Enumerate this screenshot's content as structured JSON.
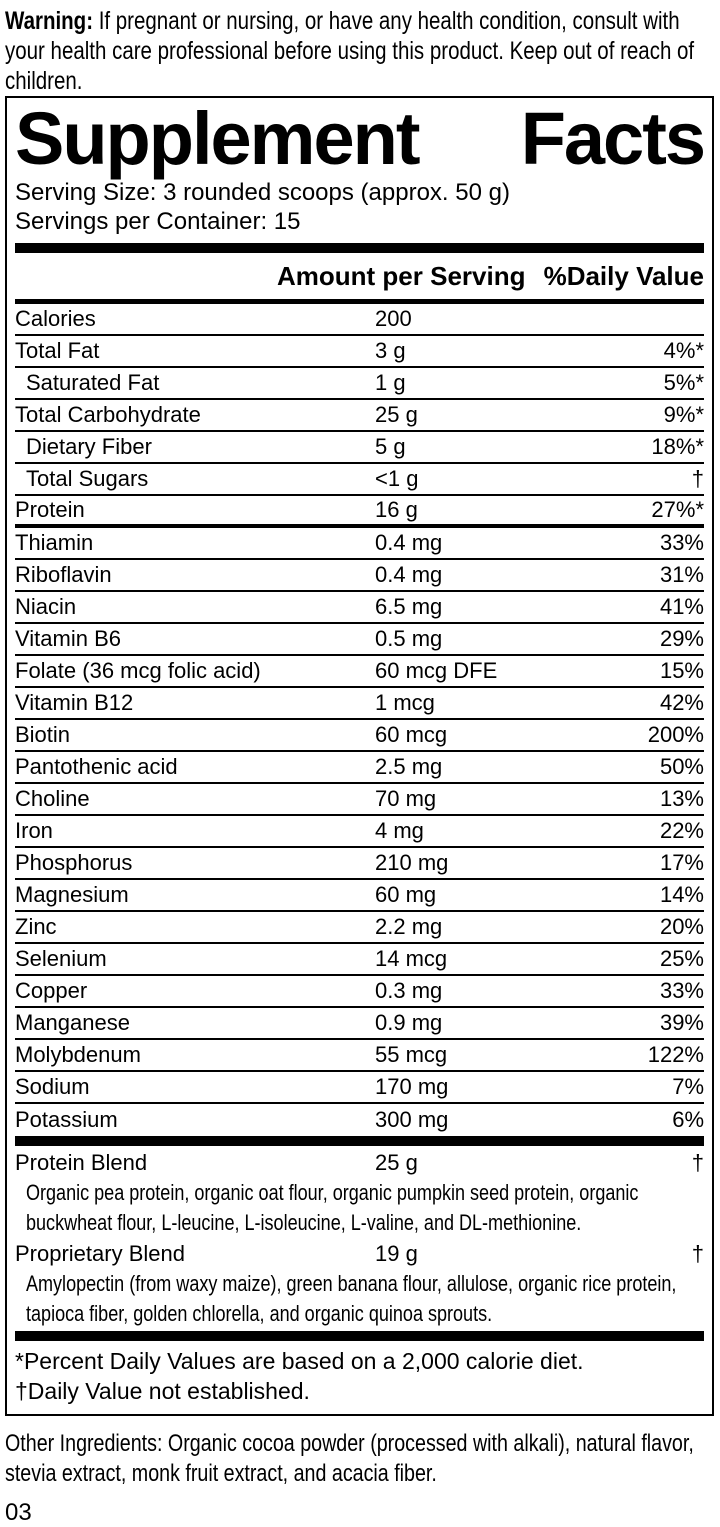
{
  "warning": {
    "label": "Warning:",
    "text": " If pregnant or nursing, or have any health condition, consult with your health care professional before using this product. Keep out of reach of children."
  },
  "panel": {
    "title": {
      "left": "Supplement",
      "right": "Facts"
    },
    "serving_size": "Serving Size: 3 rounded scoops (approx. 50 g)",
    "servings_per_container": "Servings per Container: 15",
    "columns": {
      "amount_header": "Amount per Serving",
      "dv_header": "%Daily Value"
    },
    "rows": [
      {
        "name": "Calories",
        "amount": "200",
        "dv": "",
        "indent": false
      },
      {
        "name": "Total Fat",
        "amount": "3 g",
        "dv": "4%*",
        "indent": false
      },
      {
        "name": "Saturated Fat",
        "amount": "1 g",
        "dv": "5%*",
        "indent": true
      },
      {
        "name": "Total Carbohydrate",
        "amount": "25 g",
        "dv": "9%*",
        "indent": false
      },
      {
        "name": "Dietary Fiber",
        "amount": "5 g",
        "dv": "18%*",
        "indent": true
      },
      {
        "name": "Total Sugars",
        "amount": "<1 g",
        "dv": "†",
        "indent": true
      },
      {
        "name": "Protein",
        "amount": "16 g",
        "dv": "27%*",
        "indent": false
      },
      {
        "name": "Thiamin",
        "amount": "0.4 mg",
        "dv": "33%",
        "indent": false
      },
      {
        "name": "Riboflavin",
        "amount": "0.4 mg",
        "dv": "31%",
        "indent": false
      },
      {
        "name": "Niacin",
        "amount": "6.5 mg",
        "dv": "41%",
        "indent": false
      },
      {
        "name": "Vitamin B6",
        "amount": "0.5 mg",
        "dv": "29%",
        "indent": false
      },
      {
        "name": "Folate (36 mcg folic acid)",
        "amount": "60 mcg DFE",
        "dv": "15%",
        "indent": false
      },
      {
        "name": "Vitamin B12",
        "amount": "1 mcg",
        "dv": "42%",
        "indent": false
      },
      {
        "name": "Biotin",
        "amount": "60 mcg",
        "dv": "200%",
        "indent": false
      },
      {
        "name": "Pantothenic acid",
        "amount": "2.5 mg",
        "dv": "50%",
        "indent": false
      },
      {
        "name": "Choline",
        "amount": "70 mg",
        "dv": "13%",
        "indent": false
      },
      {
        "name": "Iron",
        "amount": "4 mg",
        "dv": "22%",
        "indent": false
      },
      {
        "name": "Phosphorus",
        "amount": "210 mg",
        "dv": "17%",
        "indent": false
      },
      {
        "name": "Magnesium",
        "amount": "60 mg",
        "dv": "14%",
        "indent": false
      },
      {
        "name": "Zinc",
        "amount": "2.2 mg",
        "dv": "20%",
        "indent": false
      },
      {
        "name": "Selenium",
        "amount": "14 mcg",
        "dv": "25%",
        "indent": false
      },
      {
        "name": "Copper",
        "amount": "0.3 mg",
        "dv": "33%",
        "indent": false
      },
      {
        "name": "Manganese",
        "amount": "0.9 mg",
        "dv": "39%",
        "indent": false
      },
      {
        "name": "Molybdenum",
        "amount": "55 mcg",
        "dv": "122%",
        "indent": false
      },
      {
        "name": "Sodium",
        "amount": "170 mg",
        "dv": "7%",
        "indent": false
      },
      {
        "name": "Potassium",
        "amount": "300 mg",
        "dv": "6%",
        "indent": false
      }
    ],
    "blends": [
      {
        "name": "Protein Blend",
        "amount": "25 g",
        "dv": "†",
        "desc": "Organic pea protein, organic oat flour, organic pumpkin seed protein, organic buckwheat flour, L-leucine, L-isoleucine, L-valine, and DL-methionine."
      },
      {
        "name": "Proprietary Blend",
        "amount": "19 g",
        "dv": "†",
        "desc": "Amylopectin (from waxy maize), green banana flour, allulose, organic rice protein, tapioca fiber,  golden chlorella, and organic quinoa sprouts."
      }
    ],
    "footnotes": [
      "*Percent Daily Values are based on a 2,000 calorie diet.",
      "†Daily Value not established."
    ]
  },
  "other_ingredients": "Other Ingredients: Organic cocoa powder (processed with alkali), natural flavor, stevia extract, monk fruit extract, and acacia fiber.",
  "page_number": "03",
  "colors": {
    "ink": "#000000",
    "paper": "#ffffff"
  }
}
